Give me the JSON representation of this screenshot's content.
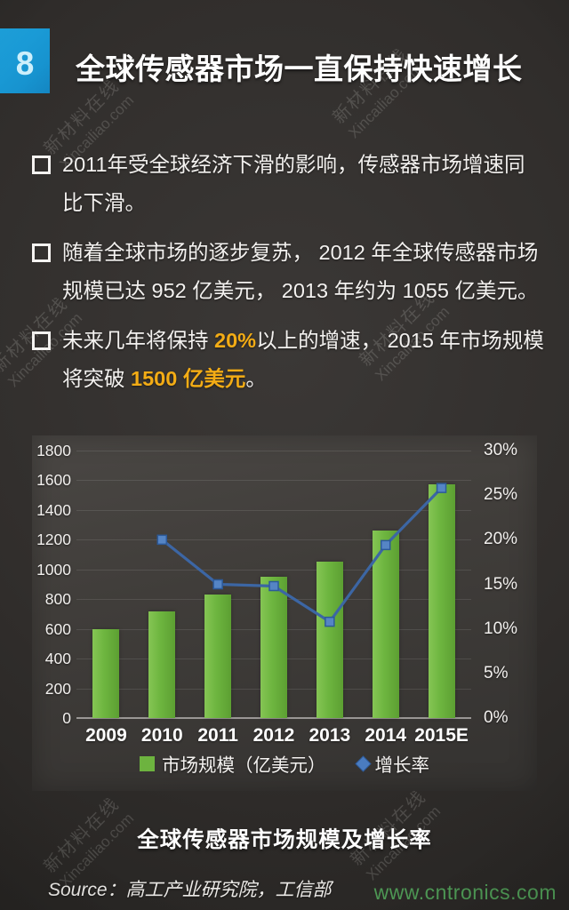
{
  "page": {
    "slide_number": "8",
    "title": "全球传感器市场一直保持快速增长",
    "colors": {
      "accent_blue": "#1793cf",
      "bar_green": "#6db33f",
      "line_blue": "#3c66a4",
      "highlight_gold": "#f3ac15",
      "url_green": "#4d9754"
    }
  },
  "bullets": [
    {
      "text": "2011年受全球经济下滑的影响，传感器市场增速同比下滑。"
    },
    {
      "text": "随着全球市场的逐步复苏， 2012 年全球传感器市场规模已达 952 亿美元， 2013 年约为 1055 亿美元。"
    },
    {
      "pre": "未来几年将保持 ",
      "hl1": "20%",
      "mid": "以上的增速， 2015 年市场规模将突破 ",
      "hl2": "1500 亿美元",
      "suf": "。"
    }
  ],
  "chart_data": {
    "type": "bar",
    "subtype": "bar+line combo, dual axis",
    "title": "全球传感器市场规模及增长率",
    "categories": [
      "2009",
      "2010",
      "2011",
      "2012",
      "2013",
      "2014",
      "2015E"
    ],
    "series": [
      {
        "name": "市场规模（亿美元）",
        "type": "bar",
        "axis": "left",
        "color": "#6db33f",
        "values": [
          600,
          720,
          830,
          952,
          1055,
          1260,
          1570
        ]
      },
      {
        "name": "增长率",
        "type": "line",
        "axis": "right",
        "color": "#3c66a4",
        "values": [
          null,
          20,
          15,
          14.8,
          10.8,
          19.4,
          25.8
        ]
      }
    ],
    "left_axis": {
      "min": 0,
      "max": 1800,
      "step": 200,
      "ticks": [
        "0",
        "200",
        "400",
        "600",
        "800",
        "1000",
        "1200",
        "1400",
        "1600",
        "1800"
      ]
    },
    "right_axis": {
      "min": 0,
      "max": 30,
      "step": 5,
      "ticks": [
        "0%",
        "5%",
        "10%",
        "15%",
        "20%",
        "25%",
        "30%"
      ]
    },
    "grid": true,
    "legend_position": "bottom"
  },
  "caption": "全球传感器市场规模及增长率",
  "source": "Source：高工产业研究院，工信部",
  "watermark": {
    "line1": "新材料在线",
    "line2": "Xincailiao.com",
    "url": "www.cntronics.com"
  }
}
